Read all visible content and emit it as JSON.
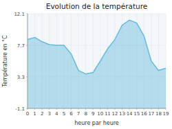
{
  "chart_data": {
    "type": "area",
    "title": "Evolution de la température",
    "x_label": "heure par heure",
    "y_label": "Température en °C",
    "x": [
      0,
      1,
      2,
      3,
      4,
      5,
      6,
      7,
      8,
      9,
      10,
      11,
      12,
      13,
      14,
      15,
      16,
      17,
      18,
      19
    ],
    "values": [
      8.5,
      8.8,
      8.2,
      7.8,
      7.7,
      7.7,
      6.5,
      4.2,
      3.7,
      3.9,
      5.5,
      7.2,
      8.5,
      10.5,
      11.2,
      10.8,
      9.0,
      5.5,
      4.2,
      4.5
    ],
    "xlim": [
      0,
      19
    ],
    "xticks": [
      0,
      1,
      2,
      3,
      4,
      5,
      6,
      7,
      8,
      9,
      10,
      11,
      12,
      13,
      14,
      15,
      16,
      17,
      18,
      19
    ],
    "ylim": [
      -1.1,
      12.1
    ],
    "yticks": [
      -1.1,
      3.3,
      7.7,
      12.1
    ],
    "color": "#66bbdd",
    "grid": true
  }
}
